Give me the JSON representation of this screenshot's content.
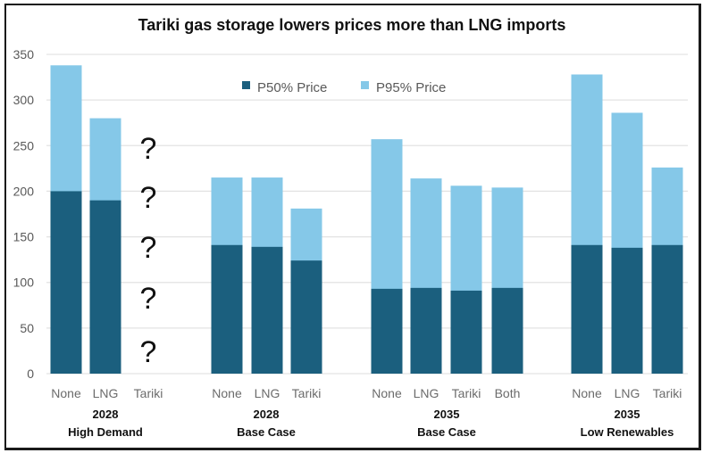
{
  "chart_data": {
    "type": "bar",
    "stacked": false,
    "overlapped": true,
    "title": "Tariki gas storage lowers prices more than LNG imports",
    "xlabel": "",
    "ylabel": "",
    "ylim": [
      0,
      350
    ],
    "yticks": [
      0,
      50,
      100,
      150,
      200,
      250,
      300,
      350
    ],
    "grid": true,
    "legend_position": "top-center",
    "colors": {
      "P50% Price": "#1b5f7e",
      "P95% Price": "#85c8e8"
    },
    "legend": [
      "P50% Price",
      "P95% Price"
    ],
    "groups": [
      {
        "label_line1": "2028",
        "label_line2": "High Demand",
        "categories": [
          "None",
          "LNG",
          "Tariki"
        ],
        "P50": [
          200,
          190,
          null
        ],
        "P95": [
          338,
          280,
          null
        ],
        "annotation": "?"
      },
      {
        "label_line1": "2028",
        "label_line2": "Base Case",
        "categories": [
          "None",
          "LNG",
          "Tariki"
        ],
        "P50": [
          141,
          139,
          124
        ],
        "P95": [
          215,
          215,
          181
        ]
      },
      {
        "label_line1": "2035",
        "label_line2": "Base Case",
        "categories": [
          "None",
          "LNG",
          "Tariki",
          "Both"
        ],
        "P50": [
          93,
          94,
          91,
          94
        ],
        "P95": [
          257,
          214,
          206,
          204
        ]
      },
      {
        "label_line1": "2035",
        "label_line2": "Low Renewables",
        "categories": [
          "None",
          "LNG",
          "Tariki"
        ],
        "P50": [
          141,
          138,
          141
        ],
        "P95": [
          328,
          286,
          226
        ]
      }
    ]
  }
}
